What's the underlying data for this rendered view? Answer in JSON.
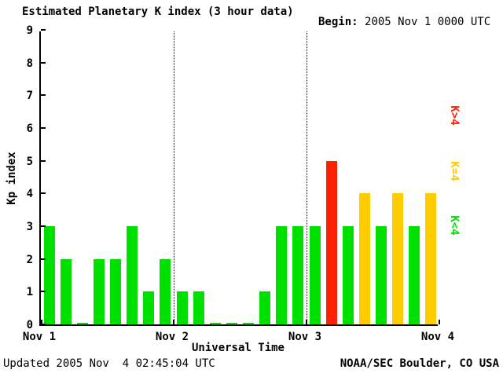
{
  "header": {
    "title": "Estimated Planetary K index (3 hour data)",
    "begin_label": "Begin:",
    "begin_value": "2005 Nov 1 0000 UTC"
  },
  "footer": {
    "updated": "Updated 2005 Nov  4 02:45:04 UTC",
    "source": "NOAA/SEC Boulder, CO USA"
  },
  "legend": [
    {
      "label": "K>4",
      "color": "#ff2000"
    },
    {
      "label": "K=4",
      "color": "#ffcc00"
    },
    {
      "label": "K<4",
      "color": "#00e000"
    }
  ],
  "chart_data": {
    "type": "bar",
    "title": "Estimated Planetary K index (3 hour data)",
    "xlabel": "Universal Time",
    "ylabel": "Kp index",
    "ylim": [
      0,
      9
    ],
    "y_ticks": [
      0,
      1,
      2,
      3,
      4,
      5,
      6,
      7,
      8,
      9
    ],
    "x_ticks": [
      "Nov 1",
      "Nov 2",
      "Nov 3",
      "Nov 4"
    ],
    "interval_hours": 3,
    "bars_per_day": 8,
    "begin": "2005 Nov 1 0000 UTC",
    "values": [
      3,
      2,
      0,
      2,
      2,
      3,
      1,
      2,
      1,
      1,
      0,
      0,
      0,
      1,
      3,
      3,
      3,
      5,
      3,
      4,
      3,
      4,
      3,
      4
    ],
    "colors": {
      "low": "#00e000",
      "mid": "#ffcc00",
      "high": "#ff2000"
    },
    "color_rule": "value<4 green, value=4 yellow, value>4 red",
    "grid": "dotted vertical lines at day boundaries",
    "legend_position": "right"
  }
}
